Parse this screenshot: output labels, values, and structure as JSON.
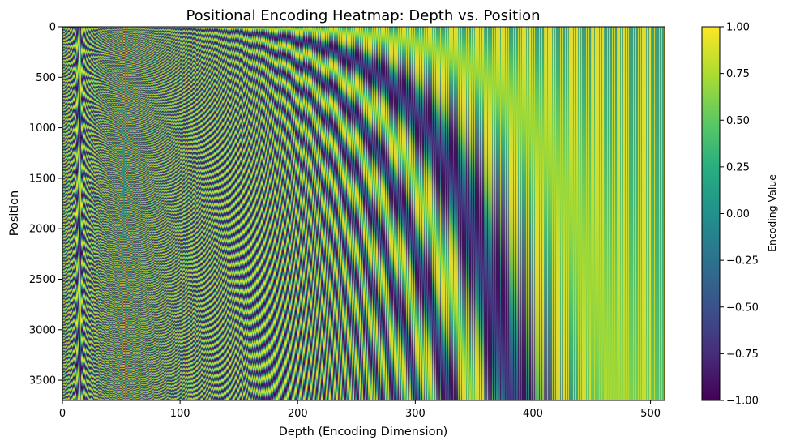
{
  "chart_data": {
    "type": "heatmap",
    "title": "Positional Encoding Heatmap: Depth vs. Position",
    "xlabel": "Depth (Encoding Dimension)",
    "ylabel": "Position",
    "xlim": [
      0,
      512
    ],
    "ylim": [
      3700,
      0
    ],
    "x_ticks": [
      0,
      100,
      200,
      300,
      400,
      500
    ],
    "y_ticks": [
      0,
      500,
      1000,
      1500,
      2000,
      2500,
      3000,
      3500
    ],
    "colormap": "viridis",
    "value_range": [
      -1.0,
      1.0
    ],
    "colorbar": {
      "label": "Encoding Value",
      "ticks": [
        "−1.00",
        "−0.75",
        "−0.50",
        "−0.25",
        "0.00",
        "0.25",
        "0.50",
        "0.75",
        "1.00"
      ],
      "tick_values": [
        -1.0,
        -0.75,
        -0.5,
        -0.25,
        0.0,
        0.25,
        0.5,
        0.75,
        1.0
      ]
    },
    "grid": false,
    "rows": 3700,
    "depth": 512
  }
}
